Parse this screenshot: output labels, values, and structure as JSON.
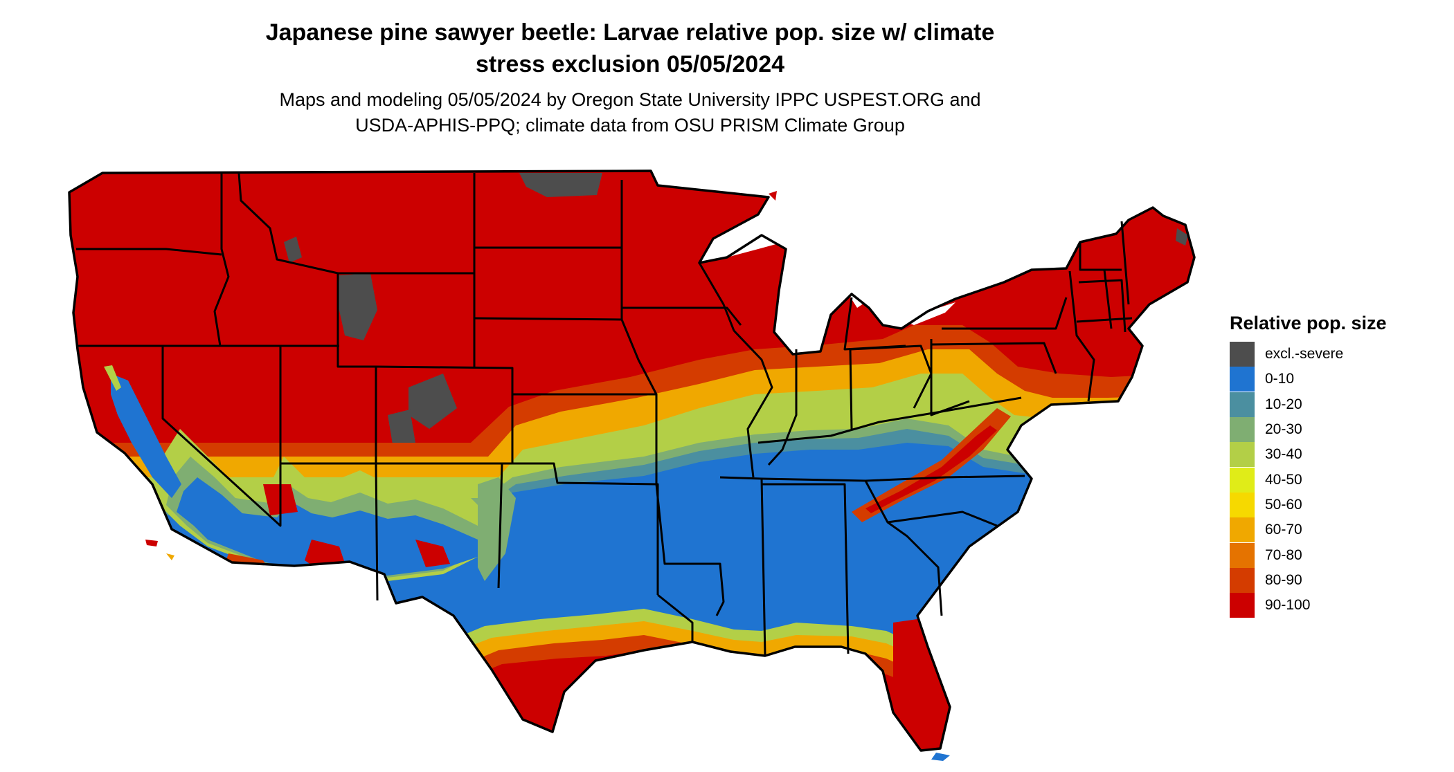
{
  "title_line1": "Japanese pine sawyer beetle: Larvae relative pop. size w/ climate",
  "title_line2": "stress exclusion 05/05/2024",
  "subtitle_line1": "Maps and modeling 05/05/2024 by Oregon State University IPPC USPEST.ORG and",
  "subtitle_line2": "USDA-APHIS-PPQ; climate data from OSU PRISM Climate Group",
  "legend": {
    "title": "Relative pop. size",
    "items": [
      {
        "label": "excl.-severe",
        "color": "#4d4d4d"
      },
      {
        "label": "0-10",
        "color": "#1f74d1"
      },
      {
        "label": "10-20",
        "color": "#4b8fa0"
      },
      {
        "label": "20-30",
        "color": "#7fae72"
      },
      {
        "label": "30-40",
        "color": "#b3cf47"
      },
      {
        "label": "40-50",
        "color": "#e0ec18"
      },
      {
        "label": "50-60",
        "color": "#f6d900"
      },
      {
        "label": "60-70",
        "color": "#f0a800"
      },
      {
        "label": "70-80",
        "color": "#e57300"
      },
      {
        "label": "80-90",
        "color": "#d43c00"
      },
      {
        "label": "90-100",
        "color": "#cc0000"
      }
    ]
  },
  "colors": {
    "state_border": "#000000",
    "water": "#ffffff"
  }
}
